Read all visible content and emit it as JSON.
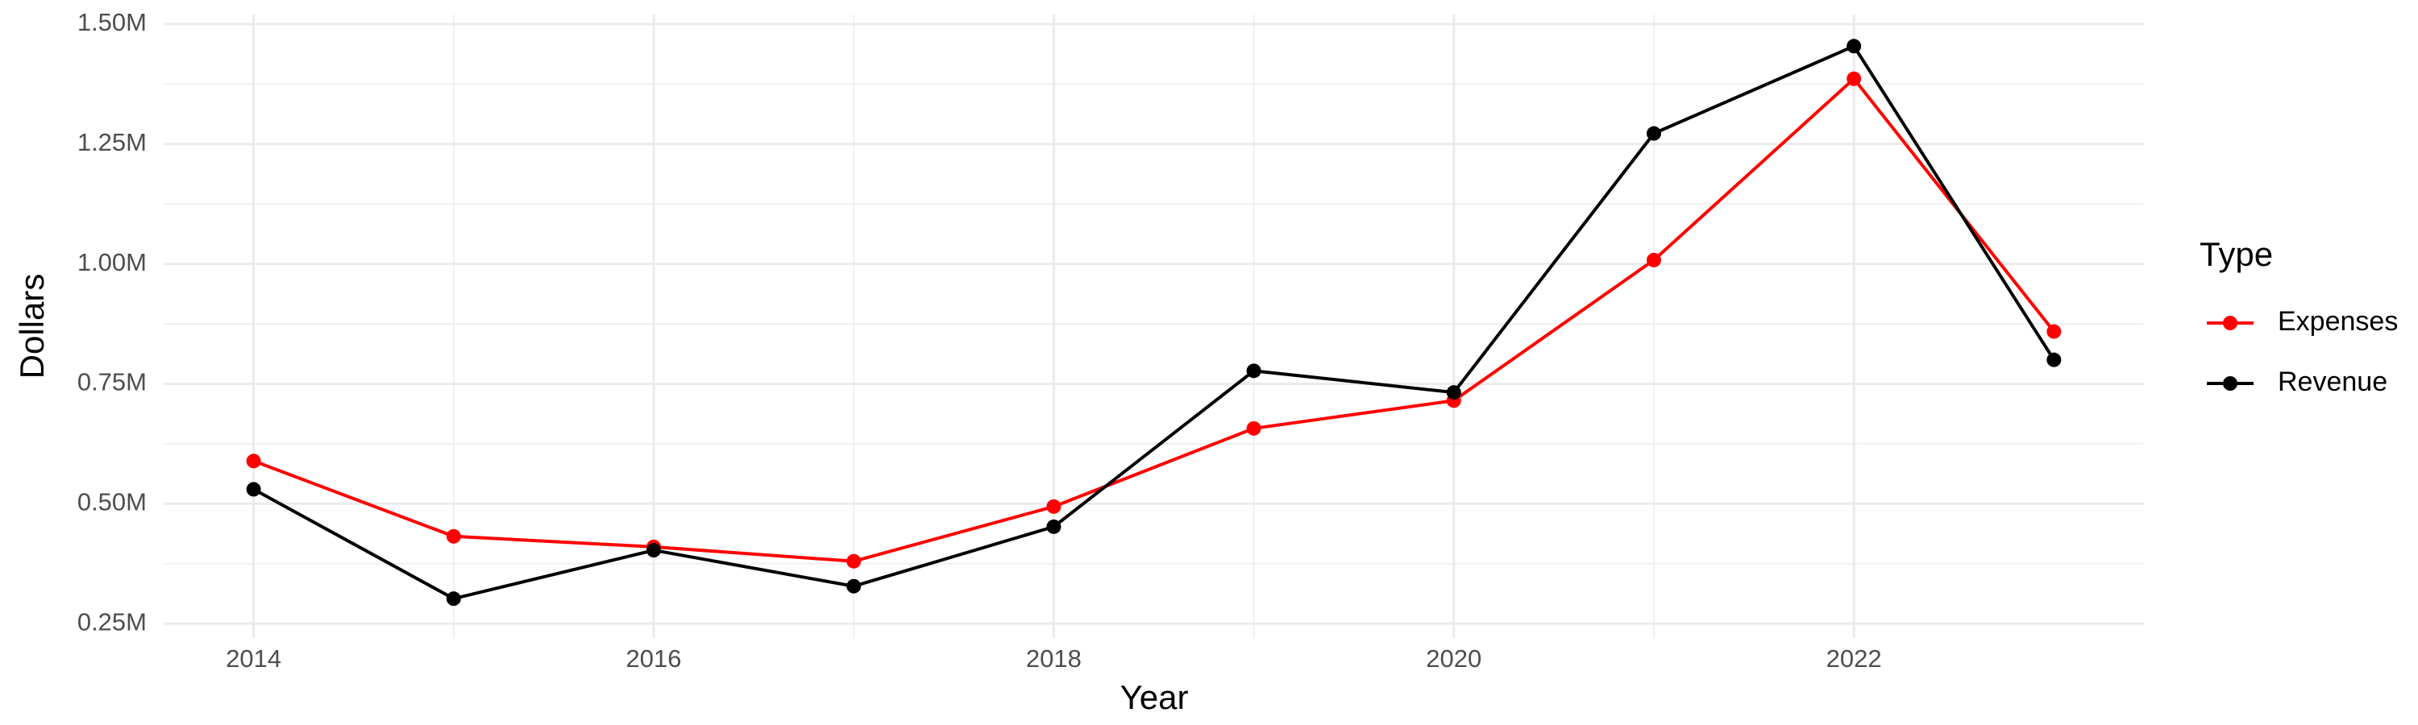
{
  "chart_data": {
    "type": "line",
    "x_label": "Year",
    "y_label": "Dollars",
    "x": [
      2014,
      2015,
      2016,
      2017,
      2018,
      2019,
      2020,
      2021,
      2022,
      2023
    ],
    "series": [
      {
        "name": "Expenses",
        "color": "#ff0000",
        "values": [
          589000,
          432000,
          410000,
          380000,
          494000,
          657000,
          715000,
          1008000,
          1386000,
          859000
        ]
      },
      {
        "name": "Revenue",
        "color": "#000000",
        "values": [
          530000,
          302000,
          403000,
          328000,
          452000,
          777000,
          732000,
          1272000,
          1454000,
          800000
        ]
      }
    ],
    "xlim": [
      2013.55,
      2023.45
    ],
    "xticks": [
      2014,
      2016,
      2018,
      2020,
      2022
    ],
    "ylim": [
      220000,
      1520000
    ],
    "yticks": [
      {
        "value": 250000,
        "label": "0.25M"
      },
      {
        "value": 500000,
        "label": "0.50M"
      },
      {
        "value": 750000,
        "label": "0.75M"
      },
      {
        "value": 1000000,
        "label": "1.00M"
      },
      {
        "value": 1250000,
        "label": "1.25M"
      },
      {
        "value": 1500000,
        "label": "1.50M"
      }
    ],
    "grid": true,
    "legend_title": "Type",
    "legend_position": "right"
  }
}
